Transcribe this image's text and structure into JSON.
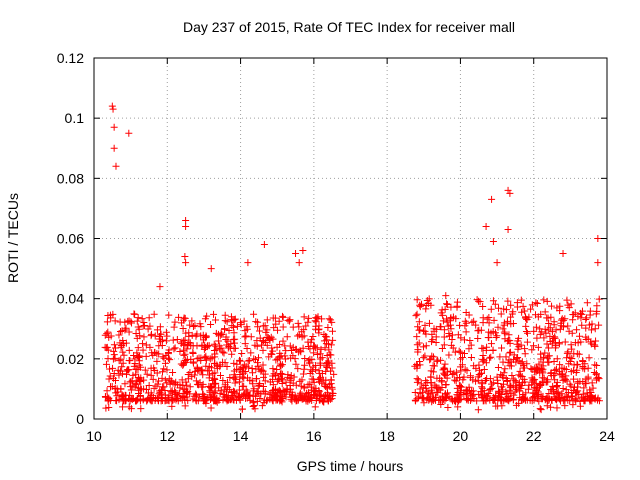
{
  "chart_data": {
    "type": "scatter",
    "title": "Day 237 of 2015, Rate Of TEC Index for receiver mall",
    "xlabel": "GPS time / hours",
    "ylabel": "ROTI / TECUs",
    "xlim": [
      10,
      24
    ],
    "ylim": [
      0,
      0.12
    ],
    "xticks": [
      "10",
      "12",
      "14",
      "16",
      "18",
      "20",
      "22",
      "24"
    ],
    "yticks": [
      "0",
      "0.02",
      "0.04",
      "0.06",
      "0.08",
      "0.1",
      "0.12"
    ],
    "grid": true,
    "marker": "+",
    "color": "#ff0000",
    "series": [
      {
        "name": "ROTI",
        "notable_points": [
          [
            10.5,
            0.104
          ],
          [
            10.52,
            0.103
          ],
          [
            10.55,
            0.097
          ],
          [
            10.55,
            0.09
          ],
          [
            10.6,
            0.084
          ],
          [
            10.95,
            0.095
          ],
          [
            12.5,
            0.066
          ],
          [
            12.5,
            0.064
          ],
          [
            12.48,
            0.054
          ],
          [
            12.5,
            0.052
          ],
          [
            13.2,
            0.05
          ],
          [
            14.2,
            0.052
          ],
          [
            14.65,
            0.058
          ],
          [
            15.5,
            0.055
          ],
          [
            15.7,
            0.056
          ],
          [
            15.6,
            0.052
          ],
          [
            20.7,
            0.064
          ],
          [
            20.85,
            0.073
          ],
          [
            21.3,
            0.076
          ],
          [
            21.35,
            0.075
          ],
          [
            21.3,
            0.063
          ],
          [
            23.75,
            0.06
          ],
          [
            23.75,
            0.052
          ],
          [
            22.8,
            0.055
          ],
          [
            19.6,
            0.041
          ],
          [
            11.8,
            0.044
          ],
          [
            20.9,
            0.059
          ],
          [
            21.0,
            0.052
          ]
        ],
        "dense_segments": [
          {
            "x_start": 10.3,
            "x_end": 16.55,
            "typical_max": 0.035
          },
          {
            "x_start": 18.75,
            "x_end": 23.8,
            "typical_max": 0.04
          }
        ]
      }
    ]
  }
}
